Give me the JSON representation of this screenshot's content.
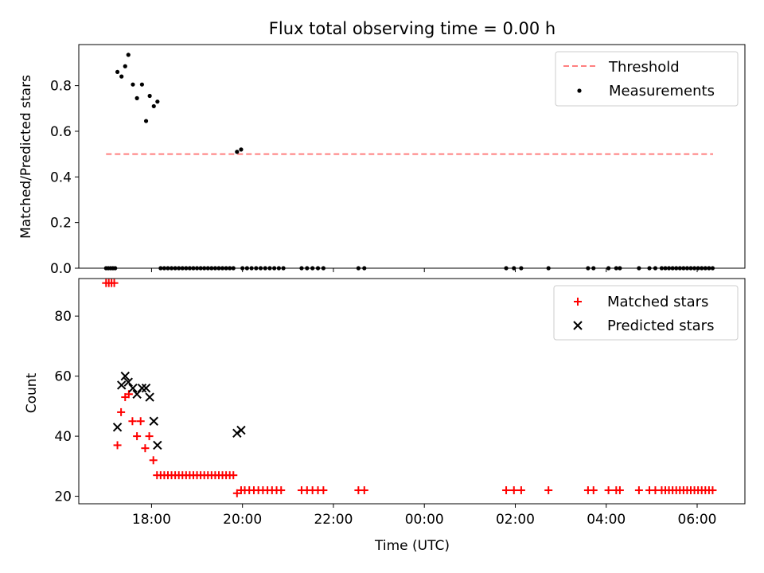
{
  "colors": {
    "threshold": "#ff7f7f",
    "measurement": "#000000",
    "matched": "#ff0000",
    "predicted": "#000000"
  },
  "chart_data": [
    {
      "type": "scatter",
      "title": "Flux total observing time = 0.00 h",
      "xlabel": "",
      "ylabel": "Matched/Predicted stars",
      "ylim": [
        0,
        0.98
      ],
      "xlim": [
        16.4,
        31.05
      ],
      "yticks": [
        0.0,
        0.2,
        0.4,
        0.6,
        0.8
      ],
      "ytick_labels": [
        "0.0",
        "0.2",
        "0.4",
        "0.6",
        "0.8"
      ],
      "grid": false,
      "legend": {
        "placement": "top-right",
        "entries": [
          "Threshold",
          "Measurements"
        ]
      },
      "threshold": {
        "name": "Threshold",
        "value": 0.5,
        "x": [
          17.0,
          30.35
        ]
      },
      "series": [
        {
          "name": "Measurements",
          "x": [
            17.25,
            17.34,
            17.42,
            17.49,
            17.59,
            17.68,
            17.79,
            17.88,
            17.96,
            18.05,
            18.13,
            19.88,
            19.97,
            17.0,
            17.05,
            17.1,
            17.15,
            17.2,
            18.2,
            18.28,
            18.36,
            18.44,
            18.52,
            18.6,
            18.68,
            18.76,
            18.84,
            18.92,
            19.0,
            19.08,
            19.16,
            19.24,
            19.32,
            19.4,
            19.48,
            19.56,
            19.64,
            19.72,
            19.8,
            20.0,
            20.1,
            20.2,
            20.3,
            20.4,
            20.5,
            20.6,
            20.7,
            20.8,
            20.9,
            21.3,
            21.42,
            21.54,
            21.66,
            21.78,
            22.55,
            22.68,
            25.8,
            25.97,
            26.13,
            26.73,
            27.6,
            27.72,
            28.05,
            28.22,
            28.3,
            28.72,
            28.95,
            29.08,
            29.22,
            29.3,
            29.38,
            29.46,
            29.54,
            29.62,
            29.7,
            29.78,
            29.86,
            29.94,
            30.02,
            30.1,
            30.18,
            30.26,
            30.34
          ],
          "y": [
            0.86,
            0.84,
            0.885,
            0.935,
            0.805,
            0.745,
            0.805,
            0.645,
            0.755,
            0.71,
            0.73,
            0.51,
            0.52,
            0,
            0,
            0,
            0,
            0,
            0,
            0,
            0,
            0,
            0,
            0,
            0,
            0,
            0,
            0,
            0,
            0,
            0,
            0,
            0,
            0,
            0,
            0,
            0,
            0,
            0,
            0,
            0,
            0,
            0,
            0,
            0,
            0,
            0,
            0,
            0,
            0,
            0,
            0,
            0,
            0,
            0,
            0,
            0,
            0,
            0,
            0,
            0,
            0,
            0,
            0,
            0,
            0,
            0,
            0,
            0,
            0,
            0,
            0,
            0,
            0,
            0,
            0,
            0,
            0,
            0,
            0,
            0,
            0,
            0
          ]
        }
      ]
    },
    {
      "type": "scatter",
      "title": "",
      "xlabel": "Time (UTC)",
      "ylabel": "Count",
      "ylim": [
        17.5,
        92.5
      ],
      "xlim": [
        16.4,
        31.05
      ],
      "yticks": [
        20,
        40,
        60,
        80
      ],
      "ytick_labels": [
        "20",
        "40",
        "60",
        "80"
      ],
      "xticks": [
        18,
        20,
        22,
        24,
        26,
        28,
        30
      ],
      "xtick_labels": [
        "18:00",
        "20:00",
        "22:00",
        "00:00",
        "02:00",
        "04:00",
        "06:00"
      ],
      "grid": false,
      "legend": {
        "placement": "top-right",
        "entries": [
          "Matched stars",
          "Predicted stars"
        ]
      },
      "series": [
        {
          "name": "Matched stars",
          "x": [
            17.0,
            17.06,
            17.12,
            17.18,
            17.25,
            17.33,
            17.42,
            17.5,
            17.58,
            17.68,
            17.76,
            17.86,
            17.95,
            18.04,
            18.12,
            18.2,
            18.28,
            18.36,
            18.44,
            18.52,
            18.6,
            18.68,
            18.76,
            18.84,
            18.92,
            19.0,
            19.08,
            19.16,
            19.24,
            19.32,
            19.4,
            19.48,
            19.56,
            19.64,
            19.72,
            19.8,
            19.88,
            19.97,
            20.05,
            20.15,
            20.25,
            20.35,
            20.45,
            20.55,
            20.65,
            20.75,
            20.85,
            21.3,
            21.42,
            21.54,
            21.66,
            21.78,
            22.55,
            22.68,
            25.8,
            25.97,
            26.13,
            26.73,
            27.6,
            27.72,
            28.05,
            28.22,
            28.3,
            28.72,
            28.95,
            29.08,
            29.22,
            29.3,
            29.38,
            29.46,
            29.54,
            29.62,
            29.7,
            29.78,
            29.86,
            29.94,
            30.02,
            30.1,
            30.18,
            30.26,
            30.34
          ],
          "y": [
            91,
            91,
            91,
            91,
            37,
            48,
            53,
            54,
            45,
            40,
            45,
            36,
            40,
            32,
            27,
            27,
            27,
            27,
            27,
            27,
            27,
            27,
            27,
            27,
            27,
            27,
            27,
            27,
            27,
            27,
            27,
            27,
            27,
            27,
            27,
            27,
            21,
            22,
            22,
            22,
            22,
            22,
            22,
            22,
            22,
            22,
            22,
            22,
            22,
            22,
            22,
            22,
            22,
            22,
            22,
            22,
            22,
            22,
            22,
            22,
            22,
            22,
            22,
            22,
            22,
            22,
            22,
            22,
            22,
            22,
            22,
            22,
            22,
            22,
            22,
            22,
            22,
            22,
            22,
            22,
            22
          ]
        },
        {
          "name": "Predicted stars",
          "x": [
            17.25,
            17.34,
            17.42,
            17.49,
            17.59,
            17.68,
            17.79,
            17.88,
            17.96,
            18.05,
            18.13,
            19.88,
            19.97
          ],
          "y": [
            43,
            57,
            60,
            58,
            56,
            54,
            56,
            56,
            53,
            45,
            37,
            41,
            42
          ]
        }
      ]
    }
  ]
}
